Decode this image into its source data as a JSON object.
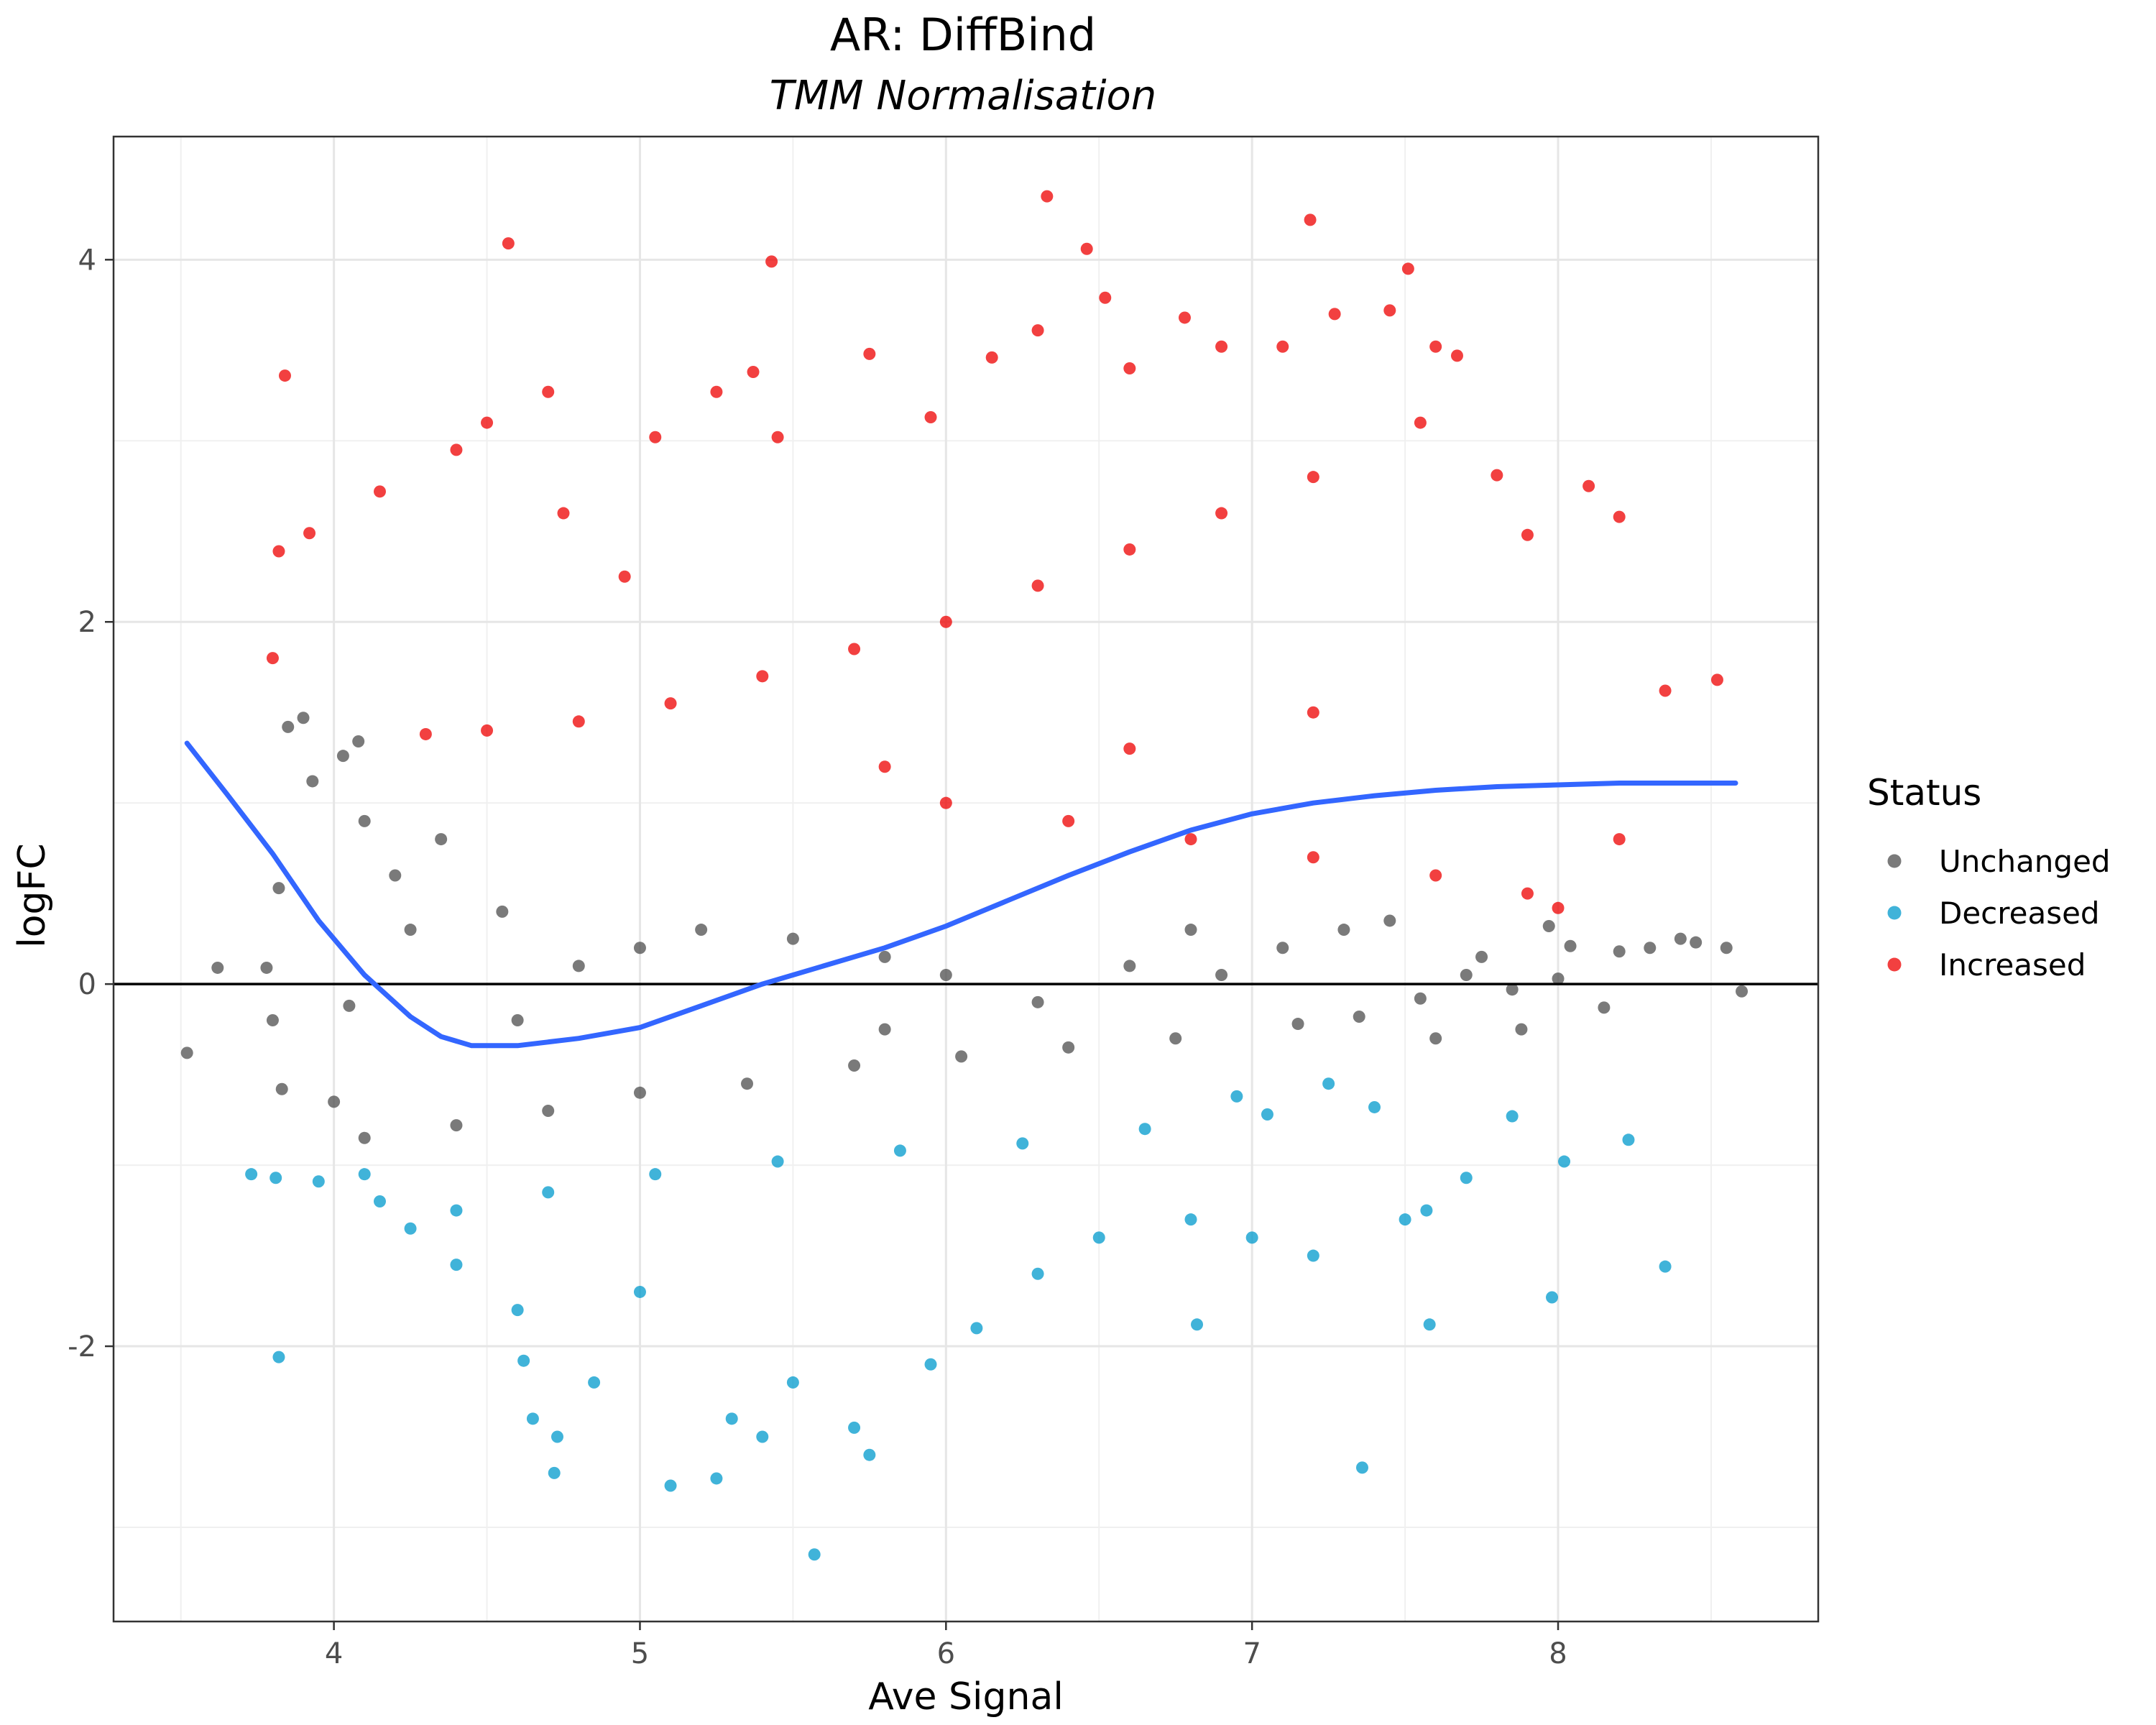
{
  "chart_data": {
    "type": "scatter",
    "title": "AR: DiffBind",
    "subtitle": "TMM Normalisation",
    "xlabel": "Ave Signal",
    "ylabel": "logFC",
    "xlim": [
      3.28,
      8.85
    ],
    "ylim": [
      -3.52,
      4.68
    ],
    "x_ticks": [
      4,
      5,
      6,
      7,
      8
    ],
    "y_ticks": [
      -2,
      0,
      2,
      4
    ],
    "x_tick_labels": [
      "4",
      "5",
      "6",
      "7",
      "8"
    ],
    "y_tick_labels": [
      "-2",
      "0",
      "2",
      "4"
    ],
    "grid": true,
    "reference_line_y": 0,
    "legend": {
      "title": "Status",
      "position": "right",
      "entries": [
        {
          "label": "Unchanged",
          "color": "#4d4d4d"
        },
        {
          "label": "Decreased",
          "color": "#0099cc"
        },
        {
          "label": "Increased",
          "color": "#ee0000"
        }
      ]
    },
    "series": [
      {
        "name": "Unchanged",
        "color": "#4d4d4d",
        "points": [
          [
            3.52,
            -0.38
          ],
          [
            3.62,
            0.09
          ],
          [
            3.78,
            0.09
          ],
          [
            3.8,
            -0.2
          ],
          [
            3.83,
            -0.58
          ],
          [
            3.82,
            0.53
          ],
          [
            3.85,
            1.42
          ],
          [
            3.9,
            1.47
          ],
          [
            3.93,
            1.12
          ],
          [
            4.03,
            1.26
          ],
          [
            4.08,
            1.34
          ],
          [
            4.0,
            -0.65
          ],
          [
            4.1,
            0.9
          ],
          [
            4.2,
            0.6
          ],
          [
            4.35,
            0.8
          ],
          [
            4.55,
            0.4
          ],
          [
            4.8,
            0.1
          ],
          [
            5.0,
            0.2
          ],
          [
            5.2,
            0.3
          ],
          [
            5.5,
            0.25
          ],
          [
            5.8,
            0.15
          ],
          [
            6.0,
            0.05
          ],
          [
            6.3,
            -0.1
          ],
          [
            6.6,
            0.1
          ],
          [
            6.9,
            0.05
          ],
          [
            7.1,
            0.2
          ],
          [
            7.3,
            0.3
          ],
          [
            7.45,
            0.35
          ],
          [
            7.55,
            -0.08
          ],
          [
            7.7,
            0.05
          ],
          [
            7.75,
            0.15
          ],
          [
            7.85,
            -0.03
          ],
          [
            7.97,
            0.32
          ],
          [
            8.0,
            0.03
          ],
          [
            8.04,
            0.21
          ],
          [
            8.2,
            0.18
          ],
          [
            8.3,
            0.2
          ],
          [
            8.4,
            0.25
          ],
          [
            8.45,
            0.23
          ],
          [
            8.55,
            0.2
          ],
          [
            8.6,
            -0.04
          ],
          [
            8.15,
            -0.13
          ],
          [
            7.88,
            -0.25
          ],
          [
            7.6,
            -0.3
          ],
          [
            7.35,
            -0.18
          ],
          [
            7.15,
            -0.22
          ],
          [
            6.75,
            -0.3
          ],
          [
            6.4,
            -0.35
          ],
          [
            6.05,
            -0.4
          ],
          [
            5.7,
            -0.45
          ],
          [
            5.35,
            -0.55
          ],
          [
            5.0,
            -0.6
          ],
          [
            4.7,
            -0.7
          ],
          [
            4.4,
            -0.78
          ],
          [
            4.1,
            -0.85
          ],
          [
            4.05,
            -0.12
          ],
          [
            4.25,
            0.3
          ],
          [
            4.6,
            -0.2
          ],
          [
            5.8,
            -0.25
          ],
          [
            6.8,
            0.3
          ]
        ]
      },
      {
        "name": "Decreased",
        "color": "#0099cc",
        "points": [
          [
            3.73,
            -1.05
          ],
          [
            3.81,
            -1.07
          ],
          [
            3.95,
            -1.09
          ],
          [
            3.82,
            -2.06
          ],
          [
            4.1,
            -1.05
          ],
          [
            4.15,
            -1.2
          ],
          [
            4.25,
            -1.35
          ],
          [
            4.4,
            -1.55
          ],
          [
            4.6,
            -1.8
          ],
          [
            4.62,
            -2.08
          ],
          [
            4.65,
            -2.4
          ],
          [
            4.73,
            -2.5
          ],
          [
            4.72,
            -2.7
          ],
          [
            4.85,
            -2.2
          ],
          [
            5.0,
            -1.7
          ],
          [
            5.1,
            -2.77
          ],
          [
            5.25,
            -2.73
          ],
          [
            5.3,
            -2.4
          ],
          [
            5.4,
            -2.5
          ],
          [
            5.5,
            -2.2
          ],
          [
            5.57,
            -3.15
          ],
          [
            5.7,
            -2.45
          ],
          [
            5.75,
            -2.6
          ],
          [
            5.95,
            -2.1
          ],
          [
            6.1,
            -1.9
          ],
          [
            6.3,
            -1.6
          ],
          [
            6.5,
            -1.4
          ],
          [
            6.8,
            -1.3
          ],
          [
            6.82,
            -1.88
          ],
          [
            7.0,
            -1.4
          ],
          [
            7.2,
            -1.5
          ],
          [
            7.36,
            -2.67
          ],
          [
            7.5,
            -1.3
          ],
          [
            7.57,
            -1.25
          ],
          [
            7.58,
            -1.88
          ],
          [
            7.7,
            -1.07
          ],
          [
            7.85,
            -0.73
          ],
          [
            7.98,
            -1.73
          ],
          [
            8.02,
            -0.98
          ],
          [
            8.23,
            -0.86
          ],
          [
            8.35,
            -1.56
          ],
          [
            7.4,
            -0.68
          ],
          [
            7.05,
            -0.72
          ],
          [
            6.65,
            -0.8
          ],
          [
            6.25,
            -0.88
          ],
          [
            5.85,
            -0.92
          ],
          [
            5.45,
            -0.98
          ],
          [
            5.05,
            -1.05
          ],
          [
            4.7,
            -1.15
          ],
          [
            4.4,
            -1.25
          ],
          [
            6.95,
            -0.62
          ],
          [
            7.25,
            -0.55
          ]
        ]
      },
      {
        "name": "Increased",
        "color": "#ee0000",
        "points": [
          [
            3.8,
            1.8
          ],
          [
            3.82,
            2.39
          ],
          [
            3.84,
            3.36
          ],
          [
            3.92,
            2.49
          ],
          [
            4.15,
            2.72
          ],
          [
            4.4,
            2.95
          ],
          [
            4.5,
            3.1
          ],
          [
            4.57,
            4.09
          ],
          [
            4.7,
            3.27
          ],
          [
            4.75,
            2.6
          ],
          [
            4.95,
            2.25
          ],
          [
            5.05,
            3.02
          ],
          [
            5.25,
            3.27
          ],
          [
            5.37,
            3.38
          ],
          [
            5.43,
            3.99
          ],
          [
            5.45,
            3.02
          ],
          [
            5.75,
            3.48
          ],
          [
            5.95,
            3.13
          ],
          [
            6.15,
            3.46
          ],
          [
            6.3,
            3.61
          ],
          [
            6.33,
            4.35
          ],
          [
            6.46,
            4.06
          ],
          [
            6.52,
            3.79
          ],
          [
            6.6,
            3.4
          ],
          [
            6.78,
            3.68
          ],
          [
            6.9,
            3.52
          ],
          [
            7.1,
            3.52
          ],
          [
            7.19,
            4.22
          ],
          [
            7.27,
            3.7
          ],
          [
            7.45,
            3.72
          ],
          [
            7.51,
            3.95
          ],
          [
            7.6,
            3.52
          ],
          [
            7.67,
            3.47
          ],
          [
            7.55,
            3.1
          ],
          [
            7.2,
            2.8
          ],
          [
            6.9,
            2.6
          ],
          [
            6.6,
            2.4
          ],
          [
            6.3,
            2.2
          ],
          [
            6.0,
            2.0
          ],
          [
            5.7,
            1.85
          ],
          [
            5.4,
            1.7
          ],
          [
            5.1,
            1.55
          ],
          [
            4.8,
            1.45
          ],
          [
            4.5,
            1.4
          ],
          [
            4.3,
            1.38
          ],
          [
            6.0,
            1.0
          ],
          [
            6.4,
            0.9
          ],
          [
            6.8,
            0.8
          ],
          [
            7.2,
            0.7
          ],
          [
            7.6,
            0.6
          ],
          [
            7.9,
            0.5
          ],
          [
            8.0,
            0.42
          ],
          [
            8.2,
            0.8
          ],
          [
            8.35,
            1.62
          ],
          [
            8.52,
            1.68
          ],
          [
            8.1,
            2.75
          ],
          [
            8.2,
            2.58
          ],
          [
            7.8,
            2.81
          ],
          [
            7.9,
            2.48
          ],
          [
            7.2,
            1.5
          ],
          [
            6.6,
            1.3
          ],
          [
            5.8,
            1.2
          ]
        ]
      }
    ],
    "trend_line": {
      "color": "#3366ff",
      "points": [
        [
          3.52,
          1.33
        ],
        [
          3.65,
          1.05
        ],
        [
          3.8,
          0.72
        ],
        [
          3.95,
          0.35
        ],
        [
          4.1,
          0.05
        ],
        [
          4.25,
          -0.18
        ],
        [
          4.35,
          -0.29
        ],
        [
          4.45,
          -0.34
        ],
        [
          4.6,
          -0.34
        ],
        [
          4.8,
          -0.3
        ],
        [
          5.0,
          -0.24
        ],
        [
          5.2,
          -0.12
        ],
        [
          5.4,
          0.0
        ],
        [
          5.6,
          0.1
        ],
        [
          5.8,
          0.2
        ],
        [
          6.0,
          0.32
        ],
        [
          6.2,
          0.46
        ],
        [
          6.4,
          0.6
        ],
        [
          6.6,
          0.73
        ],
        [
          6.8,
          0.85
        ],
        [
          7.0,
          0.94
        ],
        [
          7.2,
          1.0
        ],
        [
          7.4,
          1.04
        ],
        [
          7.6,
          1.07
        ],
        [
          7.8,
          1.09
        ],
        [
          8.0,
          1.1
        ],
        [
          8.2,
          1.11
        ],
        [
          8.4,
          1.11
        ],
        [
          8.58,
          1.11
        ]
      ]
    }
  }
}
